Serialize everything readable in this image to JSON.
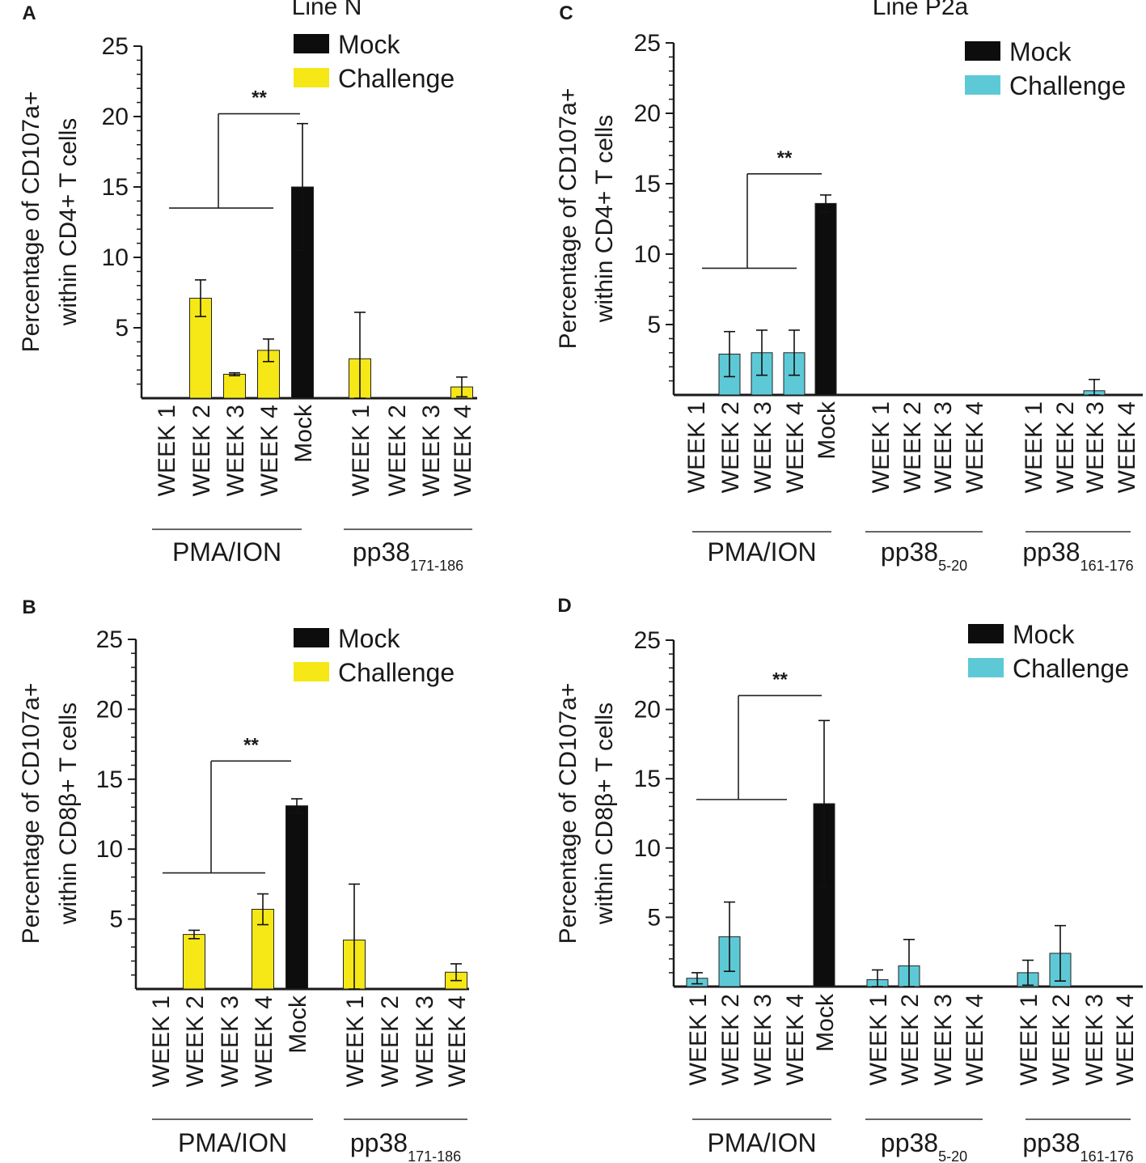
{
  "colors": {
    "mock": "#0d0d0d",
    "challenge_yellow": "#f6e716",
    "challenge_cyan": "#5ec9d6",
    "axis": "#1a1a1a"
  },
  "chart_data": [
    {
      "panel": "A",
      "title": "Line N",
      "type": "bar",
      "ylabel_line1": "Percentage of CD107a+",
      "ylabel_line2": "within CD4+ T cells",
      "ylim": [
        0,
        25
      ],
      "yticks": [
        "5",
        "10",
        "15",
        "20",
        "25"
      ],
      "legend": {
        "mock": "Mock",
        "challenge": "Challenge",
        "challenge_color": "#f6e716"
      },
      "categories": [
        "WEEK 1",
        "WEEK 2",
        "WEEK 3",
        "WEEK 4",
        "Mock",
        "WEEK 1",
        "WEEK 2",
        "WEEK 3",
        "WEEK 4"
      ],
      "values": [
        0,
        7.1,
        1.7,
        3.4,
        15.0,
        2.8,
        0,
        0,
        0.8
      ],
      "errors": [
        0,
        1.3,
        0.1,
        0.8,
        4.5,
        3.3,
        0,
        0,
        0.7
      ],
      "groups": [
        {
          "label": "PMA/ION",
          "sub": "",
          "start": 0,
          "end": 4
        },
        {
          "label": "pp38",
          "sub": "171-186",
          "start": 5,
          "end": 8
        }
      ],
      "significance": {
        "label": "**",
        "y_bar": 13.5,
        "y_top": 20.2
      }
    },
    {
      "panel": "B",
      "title": "",
      "type": "bar",
      "ylabel_line1": "Percentage of CD107a+",
      "ylabel_line2": "within CD8β+ T cells",
      "ylim": [
        0,
        25
      ],
      "yticks": [
        "5",
        "10",
        "15",
        "20",
        "25"
      ],
      "legend": {
        "mock": "Mock",
        "challenge": "Challenge",
        "challenge_color": "#f6e716"
      },
      "categories": [
        "WEEK 1",
        "WEEK 2",
        "WEEK 3",
        "WEEK 4",
        "Mock",
        "WEEK 1",
        "WEEK 2",
        "WEEK 3",
        "WEEK 4"
      ],
      "values": [
        0,
        3.9,
        0,
        5.7,
        13.1,
        3.5,
        0,
        0,
        1.2
      ],
      "errors": [
        0,
        0.3,
        0,
        1.1,
        0.5,
        4.0,
        0,
        0,
        0.6
      ],
      "groups": [
        {
          "label": "PMA/ION",
          "sub": "",
          "start": 0,
          "end": 4
        },
        {
          "label": "pp38",
          "sub": "171-186",
          "start": 5,
          "end": 8
        }
      ],
      "significance": {
        "label": "**",
        "y_bar": 8.3,
        "y_top": 16.3
      }
    },
    {
      "panel": "C",
      "title": "Line P2a",
      "type": "bar",
      "ylabel_line1": "Percentage of CD107a+",
      "ylabel_line2": "within CD4+ T cells",
      "ylim": [
        0,
        25
      ],
      "yticks": [
        "5",
        "10",
        "15",
        "20",
        "25"
      ],
      "legend": {
        "mock": "Mock",
        "challenge": "Challenge",
        "challenge_color": "#5ec9d6"
      },
      "categories": [
        "WEEK 1",
        "WEEK 2",
        "WEEK 3",
        "WEEK 4",
        "Mock",
        "WEEK 1",
        "WEEK 2",
        "WEEK 3",
        "WEEK 4",
        "WEEK 1",
        "WEEK 2",
        "WEEK 3",
        "WEEK 4"
      ],
      "values": [
        0,
        2.9,
        3.0,
        3.0,
        13.6,
        0,
        0,
        0,
        0,
        0,
        0,
        0.3,
        0
      ],
      "errors": [
        0,
        1.6,
        1.6,
        1.6,
        0.6,
        0,
        0,
        0,
        0,
        0,
        0,
        0.8,
        0
      ],
      "groups": [
        {
          "label": "PMA/ION",
          "sub": "",
          "start": 0,
          "end": 4
        },
        {
          "label": "pp38",
          "sub": "5-20",
          "start": 5,
          "end": 8
        },
        {
          "label": "pp38",
          "sub": "161-176",
          "start": 9,
          "end": 12
        }
      ],
      "significance": {
        "label": "**",
        "y_bar": 9.0,
        "y_top": 15.7
      }
    },
    {
      "panel": "D",
      "title": "",
      "type": "bar",
      "ylabel_line1": "Percentage of CD107a+",
      "ylabel_line2": "within CD8β+ T cells",
      "ylim": [
        0,
        25
      ],
      "yticks": [
        "5",
        "10",
        "15",
        "20",
        "25"
      ],
      "legend": {
        "mock": "Mock",
        "challenge": "Challenge",
        "challenge_color": "#5ec9d6"
      },
      "categories": [
        "WEEK 1",
        "WEEK 2",
        "WEEK 3",
        "WEEK 4",
        "Mock",
        "WEEK 1",
        "WEEK 2",
        "WEEK 3",
        "WEEK 4",
        "WEEK 1",
        "WEEK 2",
        "WEEK 3",
        "WEEK 4"
      ],
      "values": [
        0.6,
        3.6,
        0,
        0,
        13.2,
        0.5,
        1.5,
        0,
        0,
        1.0,
        2.4,
        0,
        0
      ],
      "errors": [
        0.4,
        2.5,
        0,
        0,
        6.0,
        0.7,
        1.9,
        0,
        0,
        0.9,
        2.0,
        0,
        0
      ],
      "groups": [
        {
          "label": "PMA/ION",
          "sub": "",
          "start": 0,
          "end": 4
        },
        {
          "label": "pp38",
          "sub": "5-20",
          "start": 5,
          "end": 8
        },
        {
          "label": "pp38",
          "sub": "161-176",
          "start": 9,
          "end": 12
        }
      ],
      "significance": {
        "label": "**",
        "y_bar": 13.5,
        "y_top": 21.0
      }
    }
  ]
}
